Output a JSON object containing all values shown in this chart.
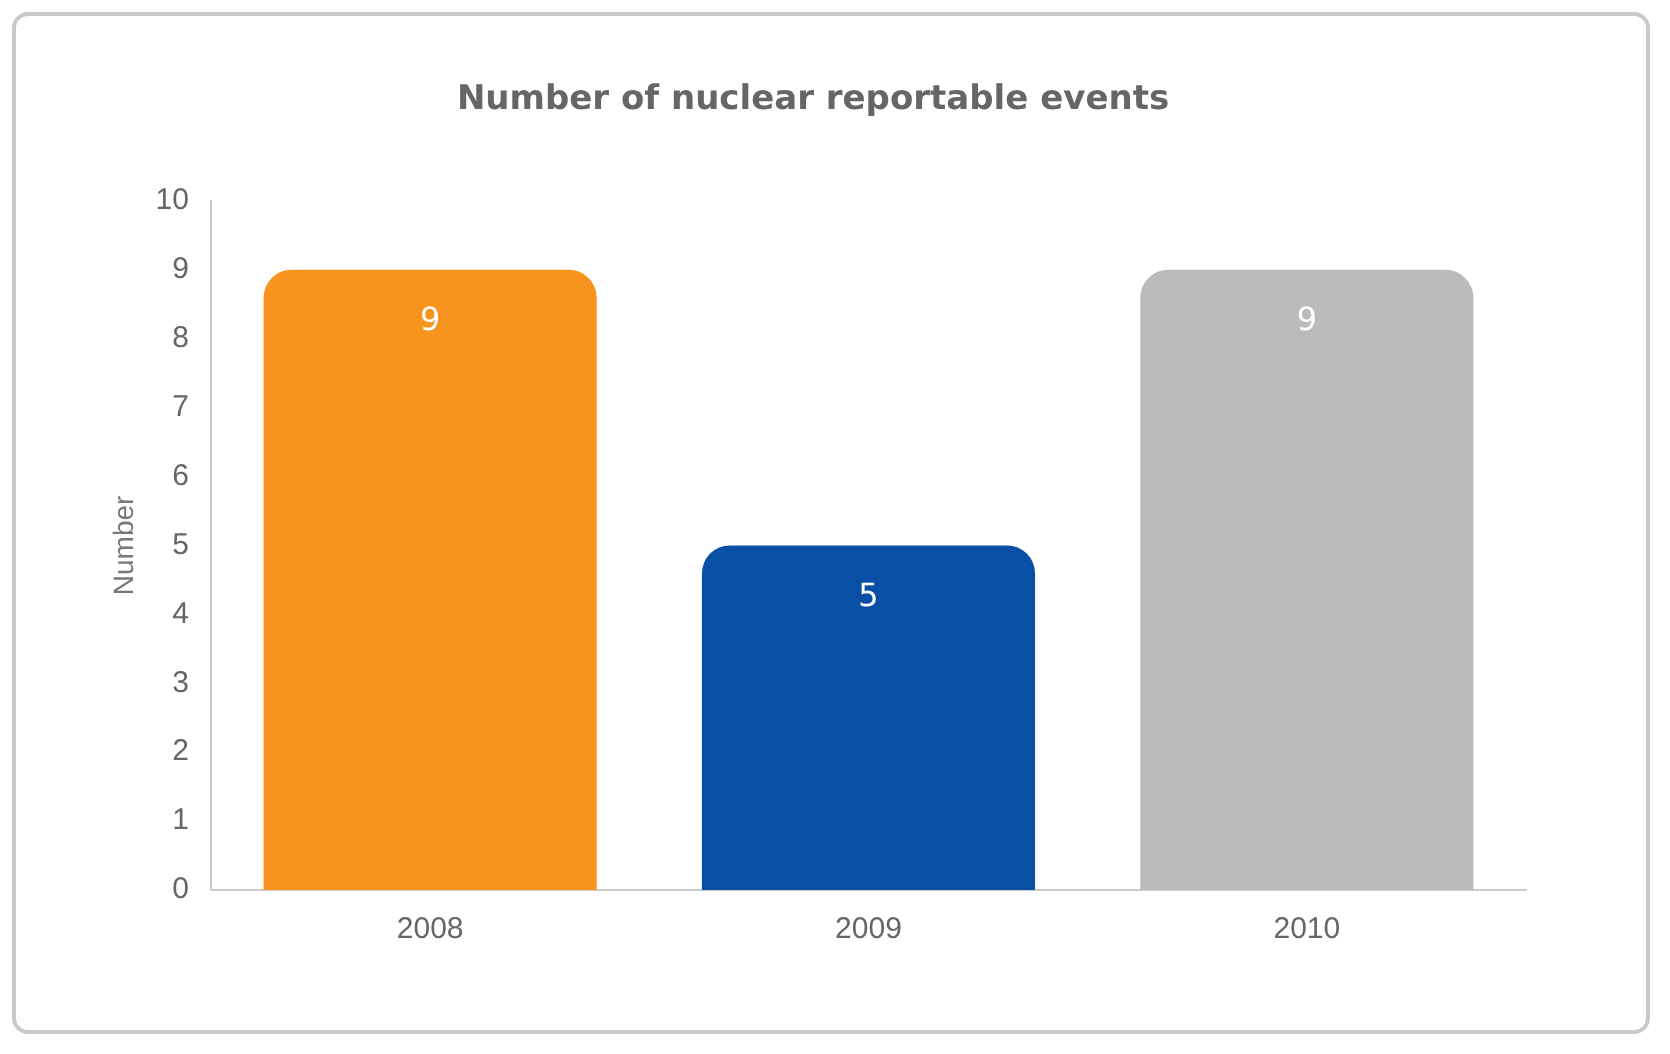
{
  "chart_data": {
    "type": "bar",
    "title": "Number of nuclear reportable events",
    "ylabel": "Number",
    "categories": [
      "2008",
      "2009",
      "2010"
    ],
    "values": [
      9,
      5,
      9
    ],
    "colors": [
      "#f7941d",
      "#0a4fa6",
      "#b9bbbd"
    ],
    "ylim": [
      0,
      10
    ],
    "yticks": [
      0,
      1,
      2,
      3,
      4,
      5,
      6,
      7,
      8,
      9,
      10
    ],
    "data_labels": true,
    "grid": false,
    "legend": false
  }
}
